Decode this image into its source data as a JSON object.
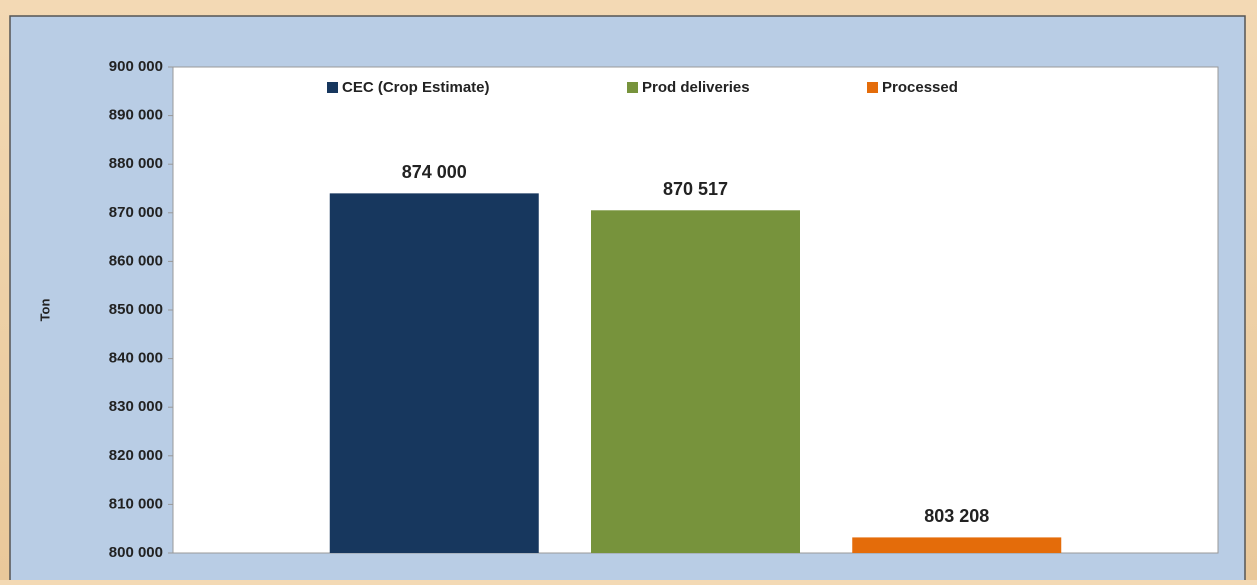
{
  "chart_data": {
    "type": "bar",
    "categories": [
      null
    ],
    "series": [
      {
        "name": "CEC (Crop Estimate)",
        "color": "#17375e",
        "values": [
          874000
        ],
        "value_labels": [
          "874 000"
        ]
      },
      {
        "name": "Prod deliveries",
        "color": "#77933c",
        "values": [
          870517
        ],
        "value_labels": [
          "870 517"
        ]
      },
      {
        "name": "Processed",
        "color": "#e46c0a",
        "values": [
          803208
        ],
        "value_labels": [
          "803 208"
        ]
      }
    ],
    "y_label": "Ton",
    "ylim": [
      800000,
      900000
    ],
    "yticks": [
      {
        "value": 800000,
        "label": "800 000"
      },
      {
        "value": 810000,
        "label": "810 000"
      },
      {
        "value": 820000,
        "label": "820 000"
      },
      {
        "value": 830000,
        "label": "830 000"
      },
      {
        "value": 840000,
        "label": "840 000"
      },
      {
        "value": 850000,
        "label": "850 000"
      },
      {
        "value": 860000,
        "label": "860 000"
      },
      {
        "value": 870000,
        "label": "870 000"
      },
      {
        "value": 880000,
        "label": "880 000"
      },
      {
        "value": 890000,
        "label": "890 000"
      },
      {
        "value": 900000,
        "label": "900 000"
      }
    ],
    "grid": false,
    "legend": "top"
  }
}
